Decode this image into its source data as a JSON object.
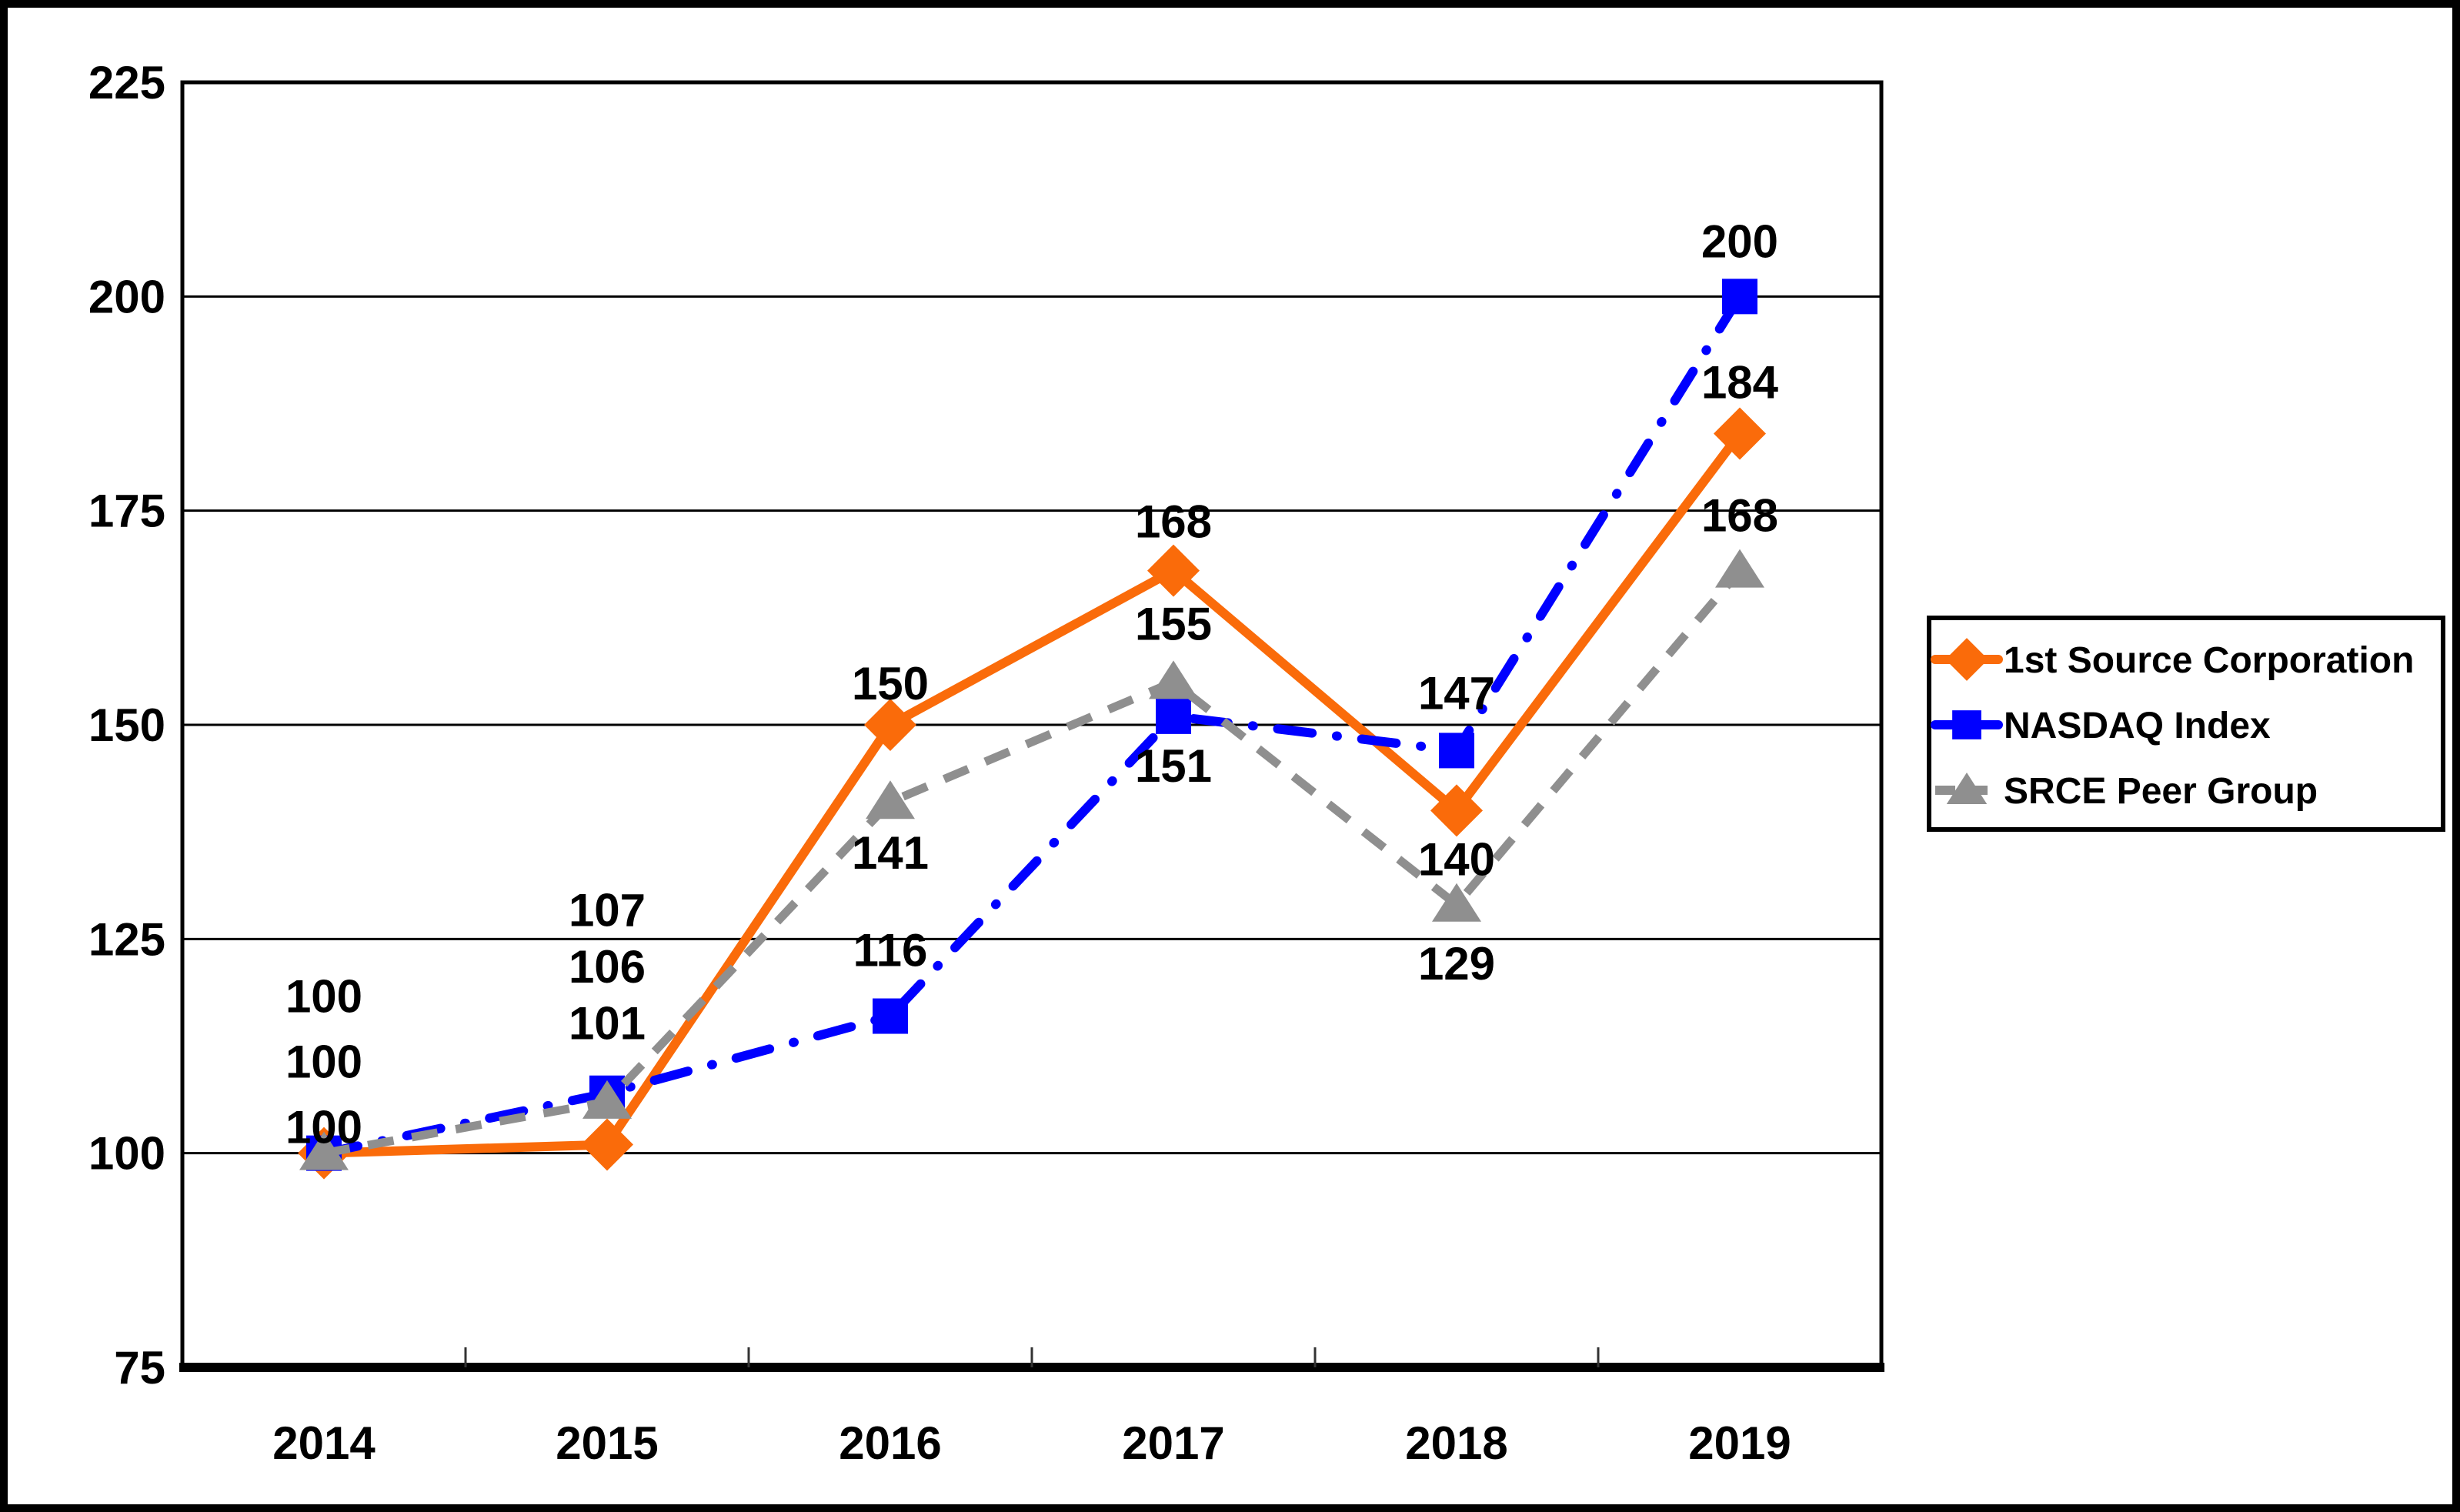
{
  "frame": {
    "background": "#FFFFFF",
    "border_color": "#000000"
  },
  "chart_data": {
    "type": "line",
    "title": "",
    "x_categories": [
      "2014",
      "2015",
      "2016",
      "2017",
      "2018",
      "2019"
    ],
    "y_axis": {
      "min": 75,
      "max": 225,
      "tick_interval": 25,
      "tick_labels": [
        "75",
        "100",
        "125",
        "150",
        "175",
        "200",
        "225"
      ]
    },
    "gridlines": {
      "horizontal": true,
      "values": [
        100,
        125,
        150,
        175,
        200
      ]
    },
    "legend_position": "right",
    "series": [
      {
        "name": "1st Source Corporation",
        "color": "#FA6B0A",
        "marker": "diamond",
        "line_style": "solid",
        "values": [
          100,
          101,
          150,
          168,
          140,
          184
        ]
      },
      {
        "name": "NASDAQ Index",
        "color": "#0000FF",
        "marker": "square",
        "line_style": "dash-dot",
        "values": [
          100,
          107,
          116,
          151,
          147,
          200
        ]
      },
      {
        "name": "SRCE Peer Group",
        "color": "#8F8F8F",
        "marker": "triangle",
        "line_style": "dashed",
        "values": [
          100,
          106,
          141,
          155,
          129,
          168
        ]
      }
    ]
  }
}
